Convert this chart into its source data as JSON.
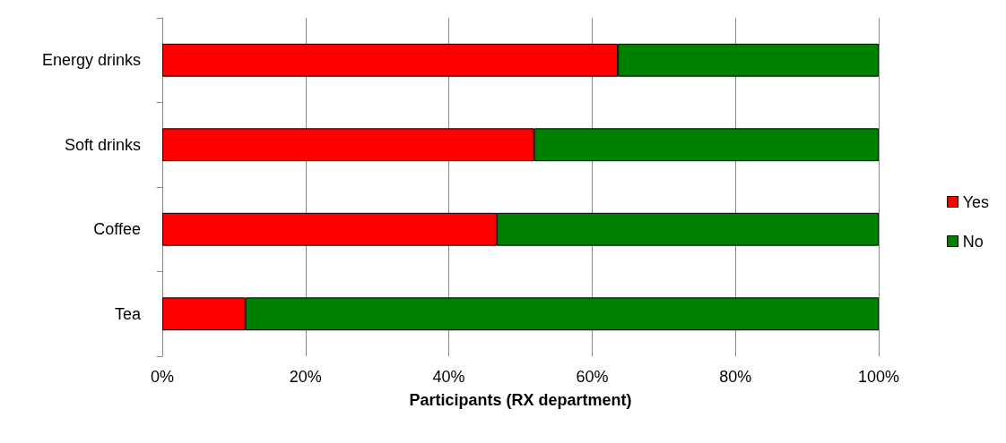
{
  "chart_data": {
    "type": "bar",
    "orientation": "horizontal",
    "stacked": true,
    "xlabel": "Participants (RX department)",
    "categories": [
      "Energy drinks",
      "Soft drinks",
      "Coffee",
      "Tea"
    ],
    "series": [
      {
        "name": "Yes",
        "color": "#ff0000",
        "values": [
          63.6,
          51.9,
          46.7,
          11.6
        ]
      },
      {
        "name": "No",
        "color": "#008000",
        "values": [
          36.4,
          48.1,
          53.3,
          88.4
        ]
      }
    ],
    "xlim": [
      0,
      100
    ],
    "xticks": [
      {
        "value": 0,
        "label": "0%"
      },
      {
        "value": 20,
        "label": "20%"
      },
      {
        "value": 40,
        "label": "40%"
      },
      {
        "value": 60,
        "label": "60%"
      },
      {
        "value": 80,
        "label": "80%"
      },
      {
        "value": 100,
        "label": "100%"
      }
    ],
    "grid": "x",
    "legend": "right"
  }
}
